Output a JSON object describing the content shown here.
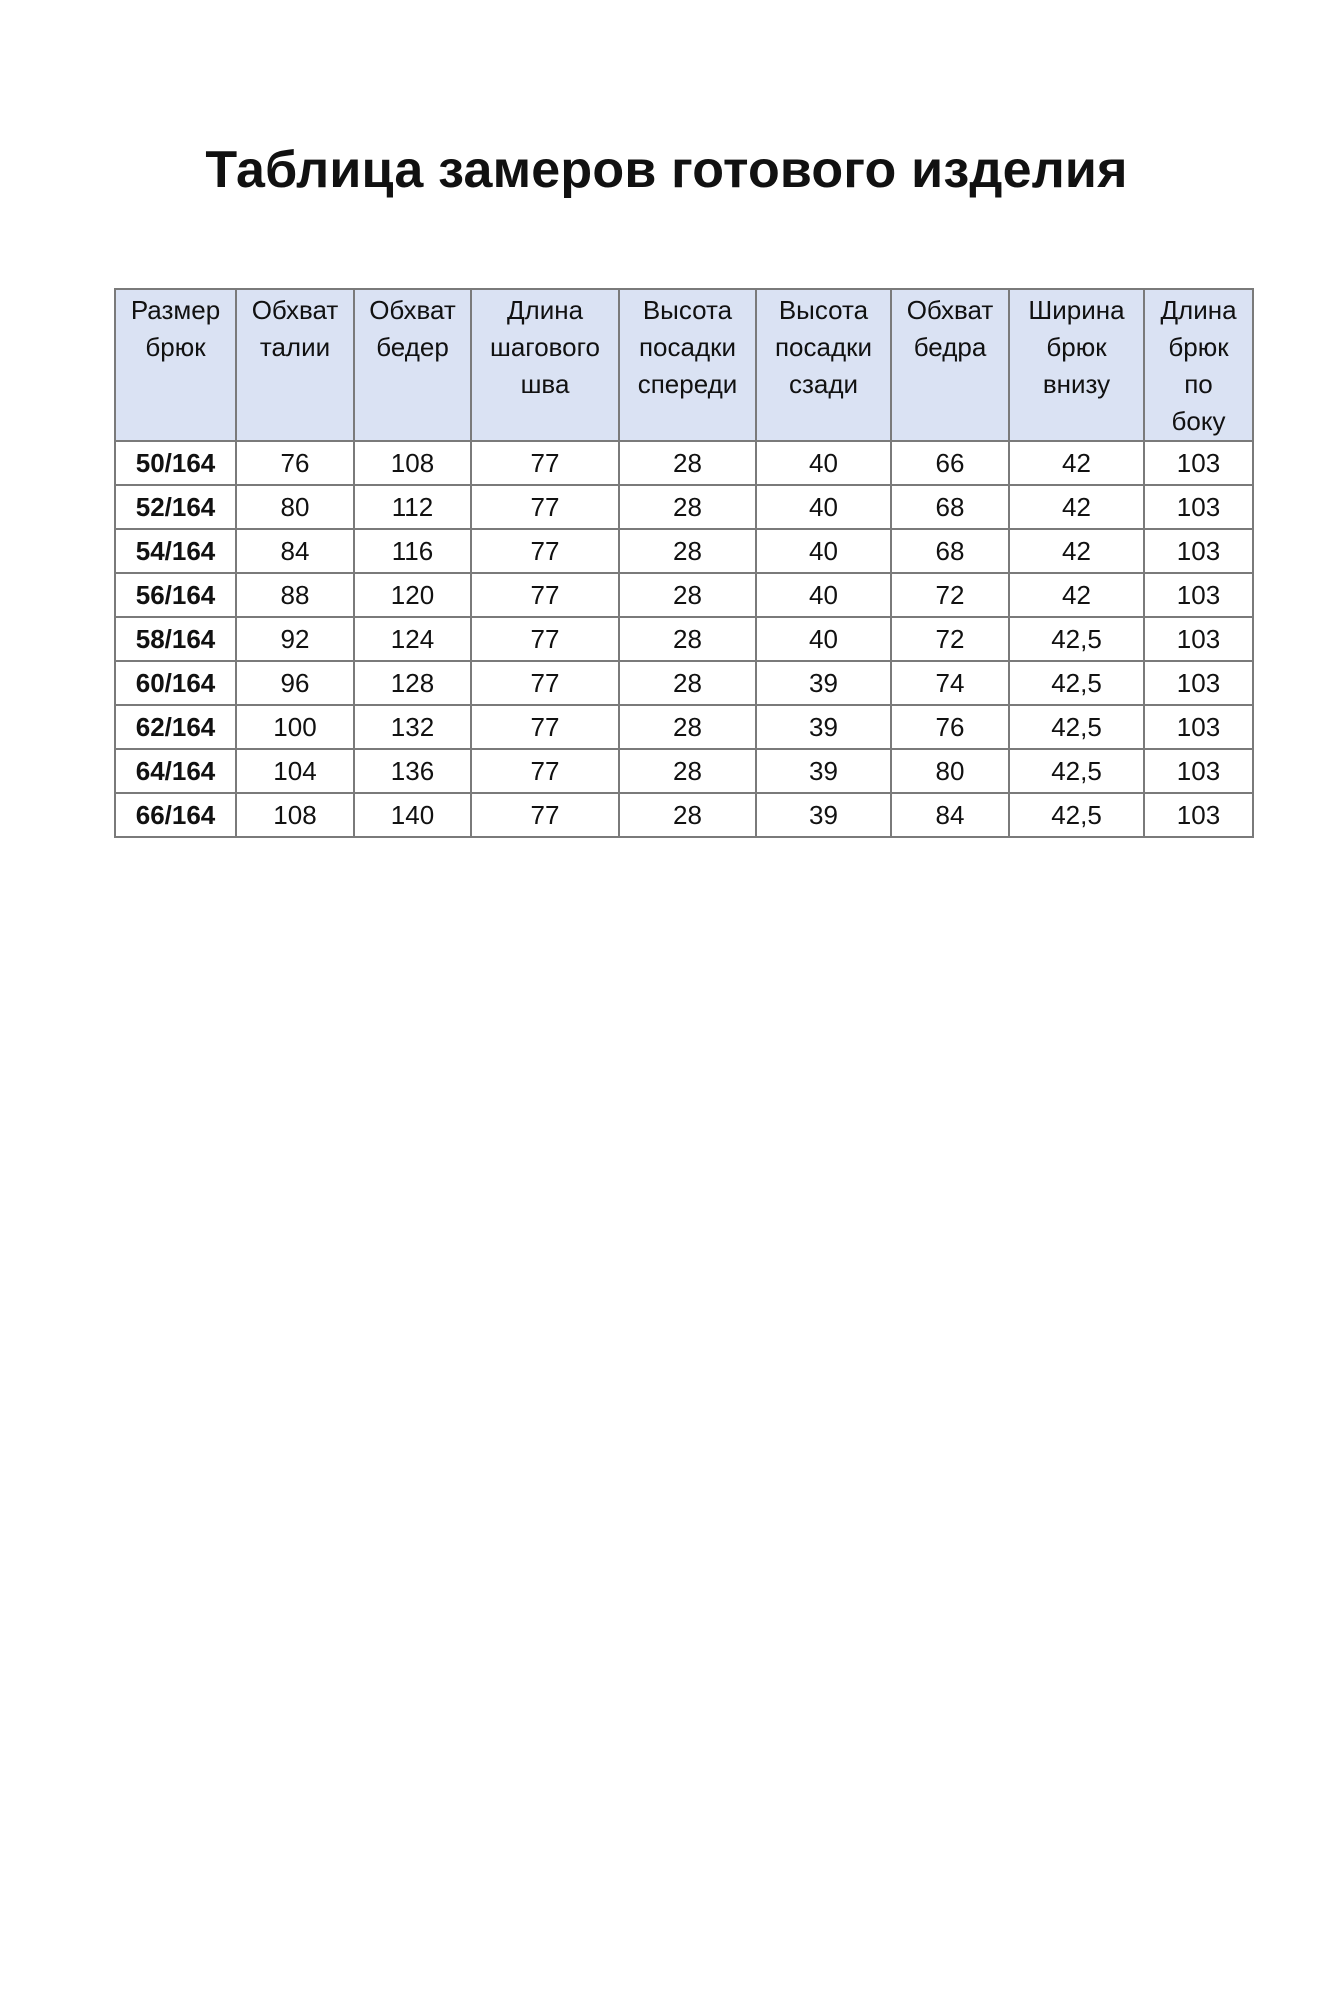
{
  "title": "Таблица замеров готового изделия",
  "table": {
    "headers": [
      [
        "Размер",
        "брюк"
      ],
      [
        "Обхват",
        "талии"
      ],
      [
        "Обхват",
        "бедер"
      ],
      [
        "Длина",
        "шагового",
        "шва"
      ],
      [
        "Высота",
        "посадки",
        "спереди"
      ],
      [
        "Высота",
        "посадки",
        "сзади"
      ],
      [
        "Обхват",
        "бедра"
      ],
      [
        "Ширина",
        "брюк",
        "внизу"
      ],
      [
        "Длина",
        "брюк",
        "по",
        "боку"
      ]
    ],
    "rows": [
      [
        "50/164",
        "76",
        "108",
        "77",
        "28",
        "40",
        "66",
        "42",
        "103"
      ],
      [
        "52/164",
        "80",
        "112",
        "77",
        "28",
        "40",
        "68",
        "42",
        "103"
      ],
      [
        "54/164",
        "84",
        "116",
        "77",
        "28",
        "40",
        "68",
        "42",
        "103"
      ],
      [
        "56/164",
        "88",
        "120",
        "77",
        "28",
        "40",
        "72",
        "42",
        "103"
      ],
      [
        "58/164",
        "92",
        "124",
        "77",
        "28",
        "40",
        "72",
        "42,5",
        "103"
      ],
      [
        "60/164",
        "96",
        "128",
        "77",
        "28",
        "39",
        "74",
        "42,5",
        "103"
      ],
      [
        "62/164",
        "100",
        "132",
        "77",
        "28",
        "39",
        "76",
        "42,5",
        "103"
      ],
      [
        "64/164",
        "104",
        "136",
        "77",
        "28",
        "39",
        "80",
        "42,5",
        "103"
      ],
      [
        "66/164",
        "108",
        "140",
        "77",
        "28",
        "39",
        "84",
        "42,5",
        "103"
      ]
    ]
  },
  "colors": {
    "header_bg": "#dae2f3",
    "border": "#7a7a7a"
  }
}
